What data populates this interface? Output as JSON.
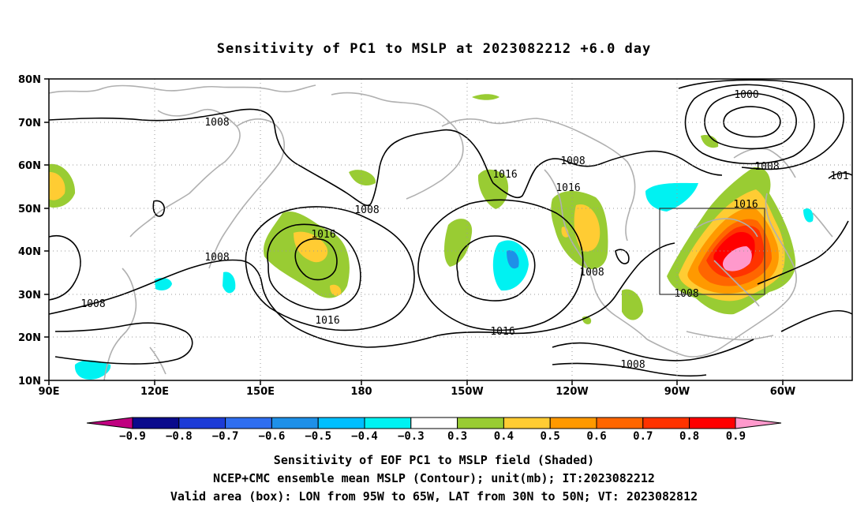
{
  "title": "Sensitivity of PC1 to MSLP at 2023082212 +6.0 day",
  "lat_labels": [
    "80N",
    "70N",
    "60N",
    "50N",
    "40N",
    "30N",
    "20N",
    "10N"
  ],
  "lon_labels": [
    "90E",
    "120E",
    "150E",
    "180",
    "150W",
    "120W",
    "90W",
    "60W"
  ],
  "contour_labels": [
    {
      "text": "1000"
    },
    {
      "text": "1008"
    },
    {
      "text": "1008"
    },
    {
      "text": "1016"
    },
    {
      "text": "1008"
    },
    {
      "text": "1016"
    },
    {
      "text": "1008"
    },
    {
      "text": "1016"
    },
    {
      "text": "1008"
    },
    {
      "text": "1016"
    },
    {
      "text": "1008"
    },
    {
      "text": "1016"
    },
    {
      "text": "1008"
    },
    {
      "text": "1016"
    },
    {
      "text": "1008"
    },
    {
      "text": "1008"
    },
    {
      "text": "101"
    }
  ],
  "colorbar": {
    "labels": [
      "-0.9",
      "-0.8",
      "-0.7",
      "-0.6",
      "-0.5",
      "-0.4",
      "-0.3",
      "0.3",
      "0.4",
      "0.5",
      "0.6",
      "0.7",
      "0.8",
      "0.9"
    ],
    "colors": [
      "#0a0a8c",
      "#1c3bd6",
      "#2f6ef0",
      "#1e90e8",
      "#00bfff",
      "#00f2f2",
      "#ffffff",
      "#99cc33",
      "#ffcc33",
      "#ff9900",
      "#ff6600",
      "#ff3300",
      "#ff0000"
    ],
    "left_tip_color": "#c00080",
    "right_tip_color": "#ff99cc"
  },
  "caption": {
    "line1": "Sensitivity of EOF PC1 to MSLP field (Shaded)",
    "line2": "NCEP+CMC ensemble mean MSLP (Contour); unit(mb); IT:2023082212",
    "line3": "Valid area (box): LON from 95W to 65W, LAT from 30N to 50N; VT: 2023082812"
  },
  "valid_area": {
    "lon_min": -95,
    "lon_max": -65,
    "lat_min": 30,
    "lat_max": 50
  }
}
